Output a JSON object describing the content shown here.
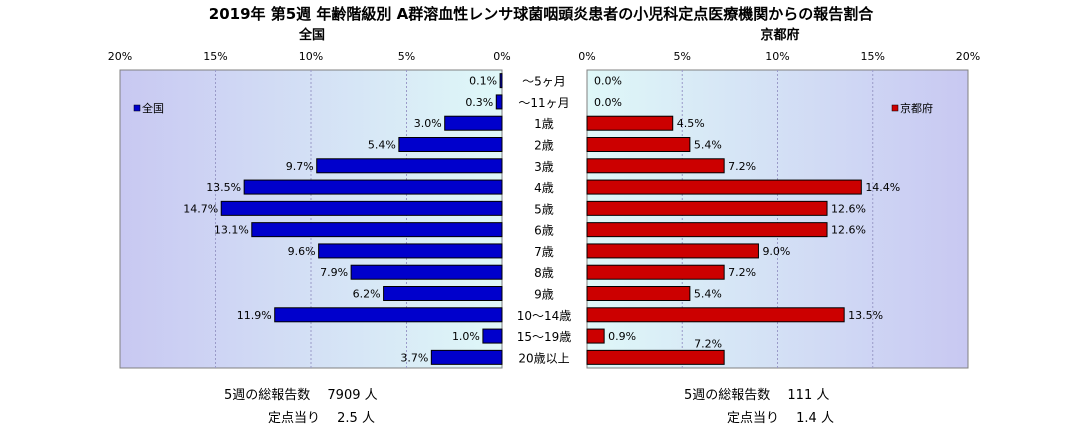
{
  "title": "2019年 第5週 年齢階級別 A群溶血性レンサ球菌咽頭炎患者の小児科定点医療機関からの報告割合",
  "colors": {
    "national": "#0000cc",
    "kyoto": "#cc0000",
    "plot_left_bg": "#c8c8f0",
    "plot_right_bg": "#c8c8f0"
  },
  "chart_data": [
    {
      "type": "bar",
      "orientation": "horizontal",
      "title": "全国",
      "legend": {
        "label": "全国",
        "placement": "top-left"
      },
      "categories": [
        "～5ヶ月",
        "～11ヶ月",
        "1歳",
        "2歳",
        "3歳",
        "4歳",
        "5歳",
        "6歳",
        "7歳",
        "8歳",
        "9歳",
        "10～14歳",
        "15～19歳",
        "20歳以上"
      ],
      "values": [
        0.1,
        0.3,
        3.0,
        5.4,
        9.7,
        13.5,
        14.7,
        13.1,
        9.6,
        7.9,
        6.2,
        11.9,
        1.0,
        3.7
      ],
      "value_labels": [
        "0.1%",
        "0.3%",
        "3.0%",
        "5.4%",
        "9.7%",
        "13.5%",
        "14.7%",
        "13.1%",
        "9.6%",
        "7.9%",
        "6.2%",
        "11.9%",
        "1.0%",
        "3.7%"
      ],
      "xlim": [
        20,
        0
      ],
      "x_ticks": [
        "20%",
        "15%",
        "10%",
        "5%",
        "0%"
      ],
      "grid": true
    },
    {
      "type": "bar",
      "orientation": "horizontal",
      "title": "京都府",
      "legend": {
        "label": "京都府",
        "placement": "top-right"
      },
      "categories": [
        "～5ヶ月",
        "～11ヶ月",
        "1歳",
        "2歳",
        "3歳",
        "4歳",
        "5歳",
        "6歳",
        "7歳",
        "8歳",
        "9歳",
        "10～14歳",
        "15～19歳",
        "20歳以上"
      ],
      "values": [
        0.0,
        0.0,
        4.5,
        5.4,
        7.2,
        14.4,
        12.6,
        12.6,
        9.0,
        7.2,
        5.4,
        13.5,
        0.9,
        7.2
      ],
      "value_labels": [
        "0.0%",
        "0.0%",
        "4.5%",
        "5.4%",
        "7.2%",
        "14.4%",
        "12.6%",
        "12.6%",
        "9.0%",
        "7.2%",
        "5.4%",
        "13.5%",
        "0.9%",
        "7.2%"
      ],
      "xlim": [
        0,
        20
      ],
      "x_ticks": [
        "0%",
        "5%",
        "10%",
        "15%",
        "20%"
      ],
      "grid": true
    }
  ],
  "summary": {
    "national_total": "5週の総報告数　 7909 人",
    "national_per_site": "定点当り　 2.5 人",
    "kyoto_total": "5週の総報告数　 111 人",
    "kyoto_per_site": "定点当り　 1.4 人"
  }
}
